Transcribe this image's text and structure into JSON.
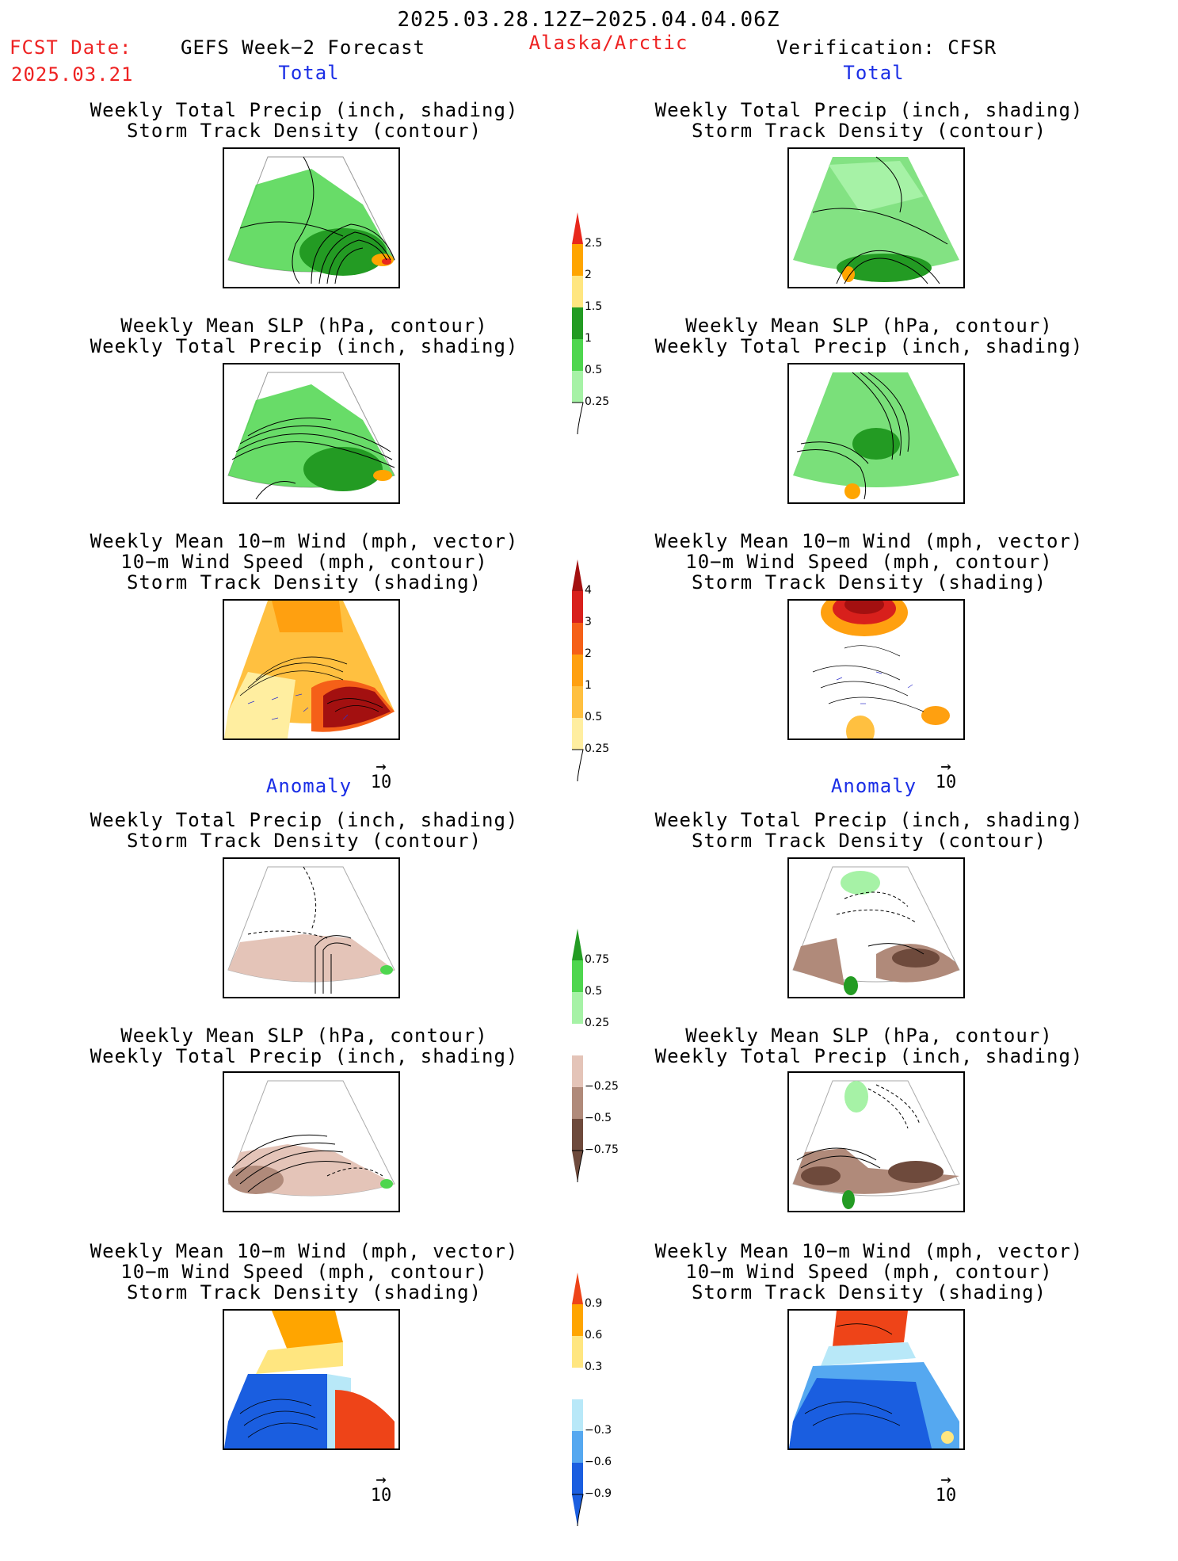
{
  "header": {
    "date_range": "2025.03.28.12Z−2025.04.04.06Z",
    "fcst_label": "FCST Date:",
    "fcst_date": "2025.03.21",
    "forecast_name": "GEFS Week−2 Forecast",
    "region": "Alaska/Arctic",
    "verification": "Verification: CFSR"
  },
  "sections": {
    "total": "Total",
    "anomaly": "Anomaly"
  },
  "titles": {
    "precip_track": [
      "Weekly Total Precip (inch, shading)",
      "Storm Track Density (contour)"
    ],
    "slp_precip": [
      "Weekly Mean SLP (hPa, contour)",
      "Weekly Total Precip (inch, shading)"
    ],
    "wind": [
      "Weekly Mean 10−m Wind (mph, vector)",
      "10−m Wind Speed (mph, contour)",
      "Storm Track Density (shading)"
    ]
  },
  "vector_ref": "10",
  "colorbars": {
    "precip_total": {
      "labels": [
        "2.5",
        "2",
        "1.5",
        "1",
        "0.5",
        "0.25"
      ],
      "colors": [
        "#e8281c",
        "#ffa500",
        "#ffe680",
        "#239b23",
        "#4ed64e",
        "#a6f2a6"
      ]
    },
    "track_total": {
      "labels": [
        "4",
        "3",
        "2",
        "1",
        "0.5",
        "0.25"
      ],
      "colors": [
        "#a31010",
        "#d8201c",
        "#f56018",
        "#ffa010",
        "#ffc040",
        "#ffeea0"
      ]
    },
    "precip_anom": {
      "labels": [
        "0.75",
        "0.5",
        "0.25",
        "−0.25",
        "−0.5",
        "−0.75"
      ],
      "colors": [
        "#239b23",
        "#4ed64e",
        "#a6f2a6",
        "#ffffff",
        "#e4c4b8",
        "#b08a7a",
        "#6e4a3c"
      ]
    },
    "track_anom": {
      "labels": [
        "0.9",
        "0.6",
        "0.3",
        "−0.3",
        "−0.6",
        "−0.9"
      ],
      "colors": [
        "#ee4418",
        "#ffa500",
        "#ffe680",
        "#ffffff",
        "#b8e8f8",
        "#55a8f0",
        "#1a5ee0"
      ]
    }
  }
}
